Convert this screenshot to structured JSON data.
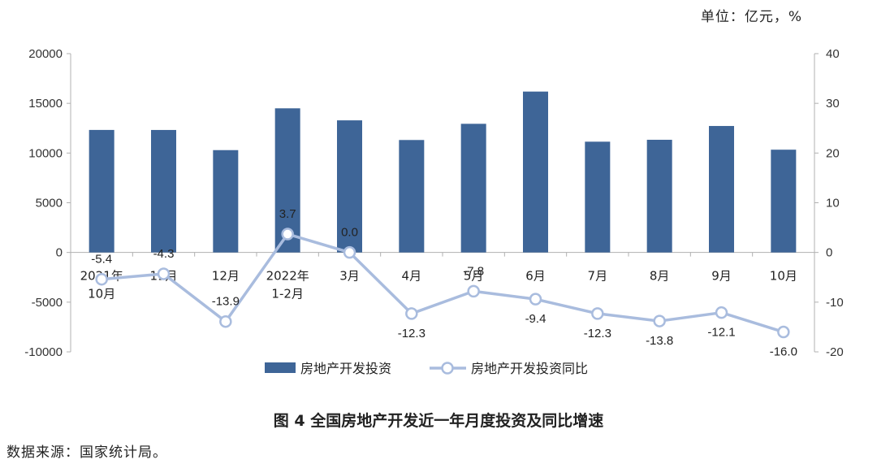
{
  "unit_label": "单位：亿元，%",
  "caption": "图 4  全国房地产开发近一年月度投资及同比增速",
  "source": "数据来源：国家统计局。",
  "colors": {
    "bar": "#3e6597",
    "line": "#a9bcde",
    "axis": "#b0b0b0",
    "text": "#222222"
  },
  "chart_data": {
    "type": "bar+line",
    "categories": [
      [
        "2021年",
        "10月"
      ],
      [
        "11月"
      ],
      [
        "12月"
      ],
      [
        "2022年",
        "1-2月"
      ],
      [
        "3月"
      ],
      [
        "4月"
      ],
      [
        "5月"
      ],
      [
        "6月"
      ],
      [
        "7月"
      ],
      [
        "8月"
      ],
      [
        "9月"
      ],
      [
        "10月"
      ]
    ],
    "series": [
      {
        "name": "房地产开发投资",
        "type": "bar",
        "axis": "left",
        "values": [
          12324,
          12321,
          10294,
          14499,
          13289,
          11312,
          12941,
          16184,
          11143,
          11334,
          12722,
          10338
        ]
      },
      {
        "name": "房地产开发投资同比",
        "type": "line",
        "axis": "right",
        "values": [
          -5.4,
          -4.3,
          -13.9,
          3.7,
          0.0,
          -12.3,
          -7.8,
          -9.4,
          -12.3,
          -13.8,
          -12.1,
          -16.0
        ],
        "labels": [
          "-5.4",
          "-4.3",
          "-13.9",
          "3.7",
          "0.0",
          "-12.3",
          "-7.8",
          "-9.4",
          "-12.3",
          "-13.8",
          "-12.1",
          "-16.0"
        ]
      }
    ],
    "y_left": {
      "min": -10000,
      "max": 20000,
      "ticks": [
        20000,
        15000,
        10000,
        5000,
        0,
        -5000,
        -10000
      ]
    },
    "y_right": {
      "min": -20,
      "max": 40,
      "ticks": [
        40,
        30,
        20,
        10,
        0,
        -10,
        -20
      ]
    },
    "legend_position": "bottom",
    "grid": false
  }
}
